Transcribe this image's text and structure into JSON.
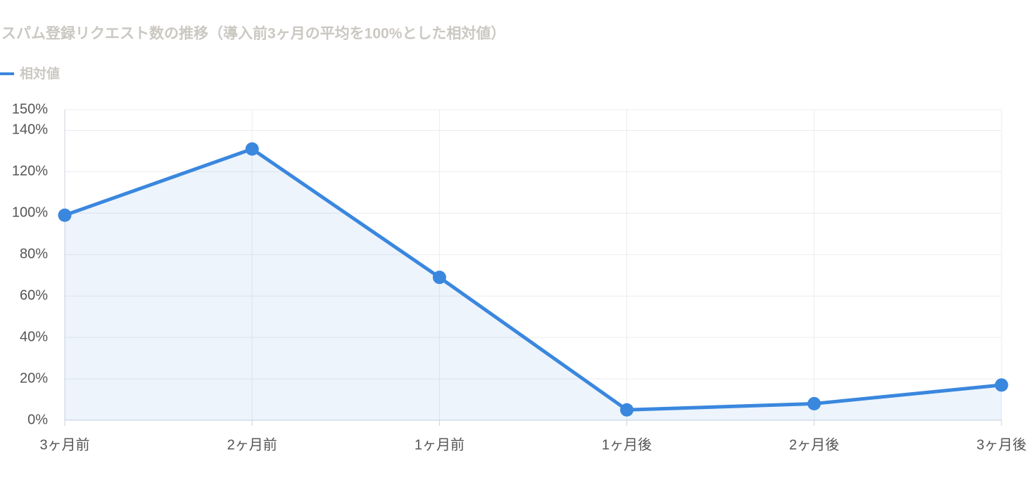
{
  "chart_data": {
    "type": "line",
    "title": "スパム登録リクエスト数の推移（導入前3ヶ月の平均を100%とした相対値）",
    "categories": [
      "3ヶ月前",
      "2ヶ月前",
      "1ヶ月前",
      "1ヶ月後",
      "2ヶ月後",
      "3ヶ月後"
    ],
    "series": [
      {
        "name": "相対値",
        "color": "#3a87de",
        "values": [
          99,
          131,
          69,
          5,
          8,
          17
        ]
      }
    ],
    "ylim": [
      0,
      150
    ],
    "yticks": [
      {
        "value": 0,
        "label": "0%"
      },
      {
        "value": 20,
        "label": "20%"
      },
      {
        "value": 40,
        "label": "40%"
      },
      {
        "value": 60,
        "label": "60%"
      },
      {
        "value": 80,
        "label": "80%"
      },
      {
        "value": 100,
        "label": "100%"
      },
      {
        "value": 120,
        "label": "120%"
      },
      {
        "value": 140,
        "label": "140%"
      },
      {
        "value": 150,
        "label": "150%"
      }
    ],
    "grid": true,
    "area": true,
    "legend": "top-left"
  }
}
